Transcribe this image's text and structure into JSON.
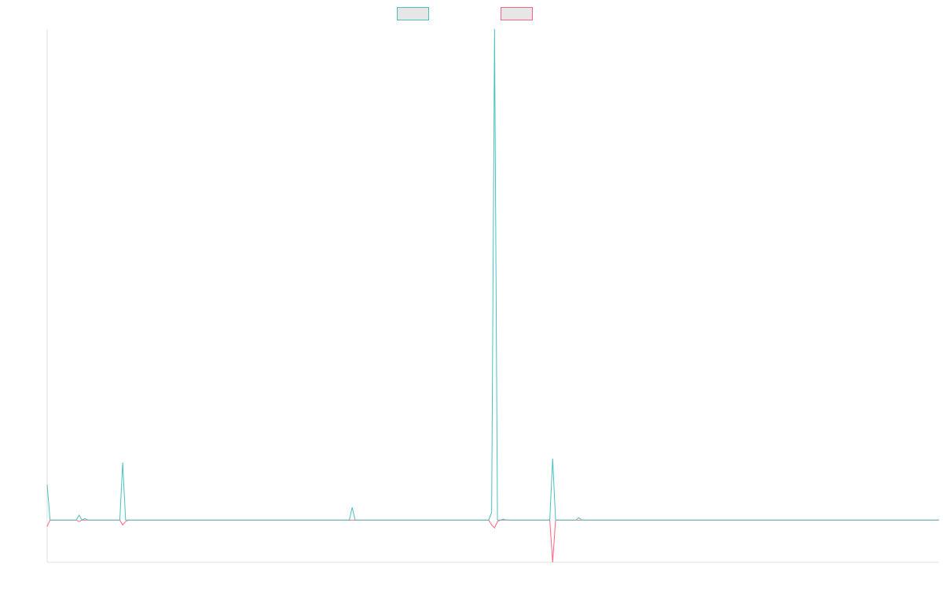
{
  "chart_data": {
    "type": "line",
    "x": [
      0,
      1,
      10,
      11,
      12,
      13,
      14,
      25,
      26,
      27,
      28,
      104,
      105,
      106,
      152,
      153,
      154,
      155,
      156,
      157,
      158,
      173,
      174,
      175,
      182,
      183,
      184,
      307
    ],
    "series": [
      {
        "color": "#4bc0c0",
        "values": [
          7.2,
          0,
          0,
          1,
          0,
          0.3,
          0,
          0,
          11.7,
          0,
          0,
          0,
          2.6,
          0,
          0,
          1.6,
          100,
          0,
          0,
          0.2,
          0,
          0,
          12.5,
          0,
          0,
          0.5,
          0,
          0
        ]
      },
      {
        "color": "#ff6384",
        "values": [
          -1.3,
          0,
          0,
          -0.3,
          0,
          0,
          0,
          0,
          -1,
          -0.3,
          0,
          0,
          0,
          0,
          0,
          -1,
          -1.6,
          -0.3,
          0,
          0,
          0,
          0,
          -8.6,
          0,
          0,
          0,
          0,
          0
        ]
      }
    ],
    "xlim": [
      0,
      307
    ],
    "ylim": [
      -8.6,
      100
    ],
    "legend": "top"
  }
}
